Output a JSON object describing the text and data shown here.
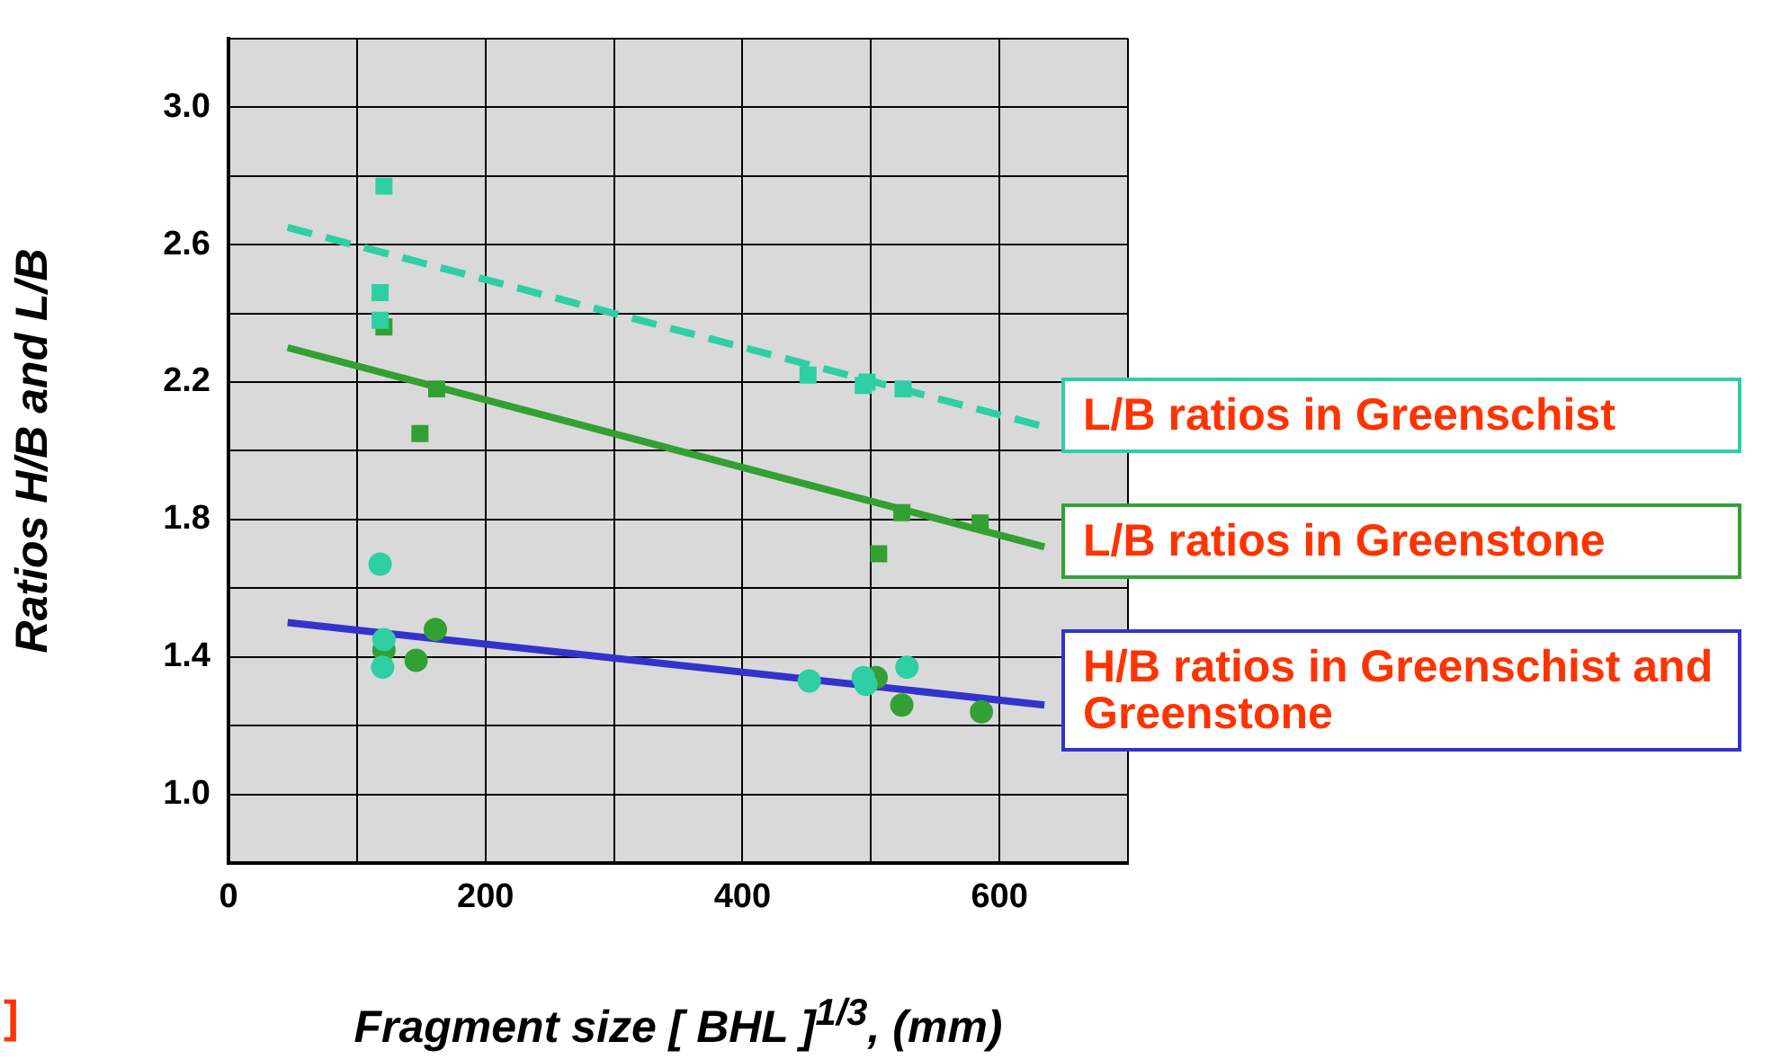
{
  "chart_data": {
    "type": "scatter",
    "xlabel": "Fragment size [ BHL ]$^{1/3}$, (mm)",
    "ylabel": "Ratios H/B and L/B",
    "xlim": [
      0,
      700
    ],
    "ylim": [
      0.8,
      3.2
    ],
    "xticks": [
      0,
      {
        "value": 100,
        "label": null
      },
      200,
      {
        "value": 300,
        "label": null
      },
      400,
      {
        "value": 500,
        "label": null
      },
      600,
      {
        "value": 700,
        "label": null
      }
    ],
    "yticks": [
      {
        "value": 0.8,
        "label": null
      },
      "1.0",
      {
        "value": 1.2,
        "label": null
      },
      1.4,
      {
        "value": 1.6,
        "label": null
      },
      1.8,
      {
        "value": 2.0,
        "label": null
      },
      2.2,
      {
        "value": 2.4,
        "label": null
      },
      2.6,
      {
        "value": 2.8,
        "label": null
      },
      "3.0",
      {
        "value": 3.2,
        "label": null
      }
    ],
    "grid": true,
    "legend": "right",
    "series": [
      {
        "marker": "square",
        "color": "#2ecfa3",
        "x": [
          121,
          118,
          118,
          451,
          494,
          497,
          525
        ],
        "values": [
          2.77,
          2.46,
          2.38,
          2.22,
          2.19,
          2.2,
          2.18
        ]
      },
      {
        "marker": "square",
        "color": "#33a033",
        "x": [
          121,
          162,
          149,
          524,
          506,
          585
        ],
        "values": [
          2.36,
          2.18,
          2.05,
          1.82,
          1.7,
          1.79
        ]
      },
      {
        "marker": "circle",
        "color": "#2ecfa3",
        "x": [
          118,
          121,
          120,
          452,
          494,
          528,
          496
        ],
        "values": [
          1.67,
          1.45,
          1.37,
          1.33,
          1.34,
          1.37,
          1.32
        ]
      },
      {
        "marker": "circle",
        "color": "#33a033",
        "x": [
          121,
          146,
          161,
          504,
          524,
          586
        ],
        "values": [
          1.42,
          1.39,
          1.48,
          1.34,
          1.26,
          1.24
        ]
      },
      {
        "type": "line",
        "name": "L/B ratios in Greenschist",
        "marker": "none",
        "line_style": "dashed",
        "color": "#2ecfa3",
        "x": [
          46,
          635
        ],
        "values": [
          2.65,
          2.07
        ]
      },
      {
        "type": "line",
        "name": "L/B ratios in Greenstone",
        "marker": "none",
        "line_style": "solid",
        "color": "#33a033",
        "x": [
          46,
          635
        ],
        "values": [
          2.3,
          1.72
        ]
      },
      {
        "type": "line",
        "name": "H/B ratios in Greenschist and Greenstone",
        "marker": "none",
        "line_style": "solid",
        "color": "#3333cc",
        "x": [
          46,
          635
        ],
        "values": [
          1.5,
          1.26
        ]
      }
    ],
    "annotations": [
      "]"
    ]
  }
}
